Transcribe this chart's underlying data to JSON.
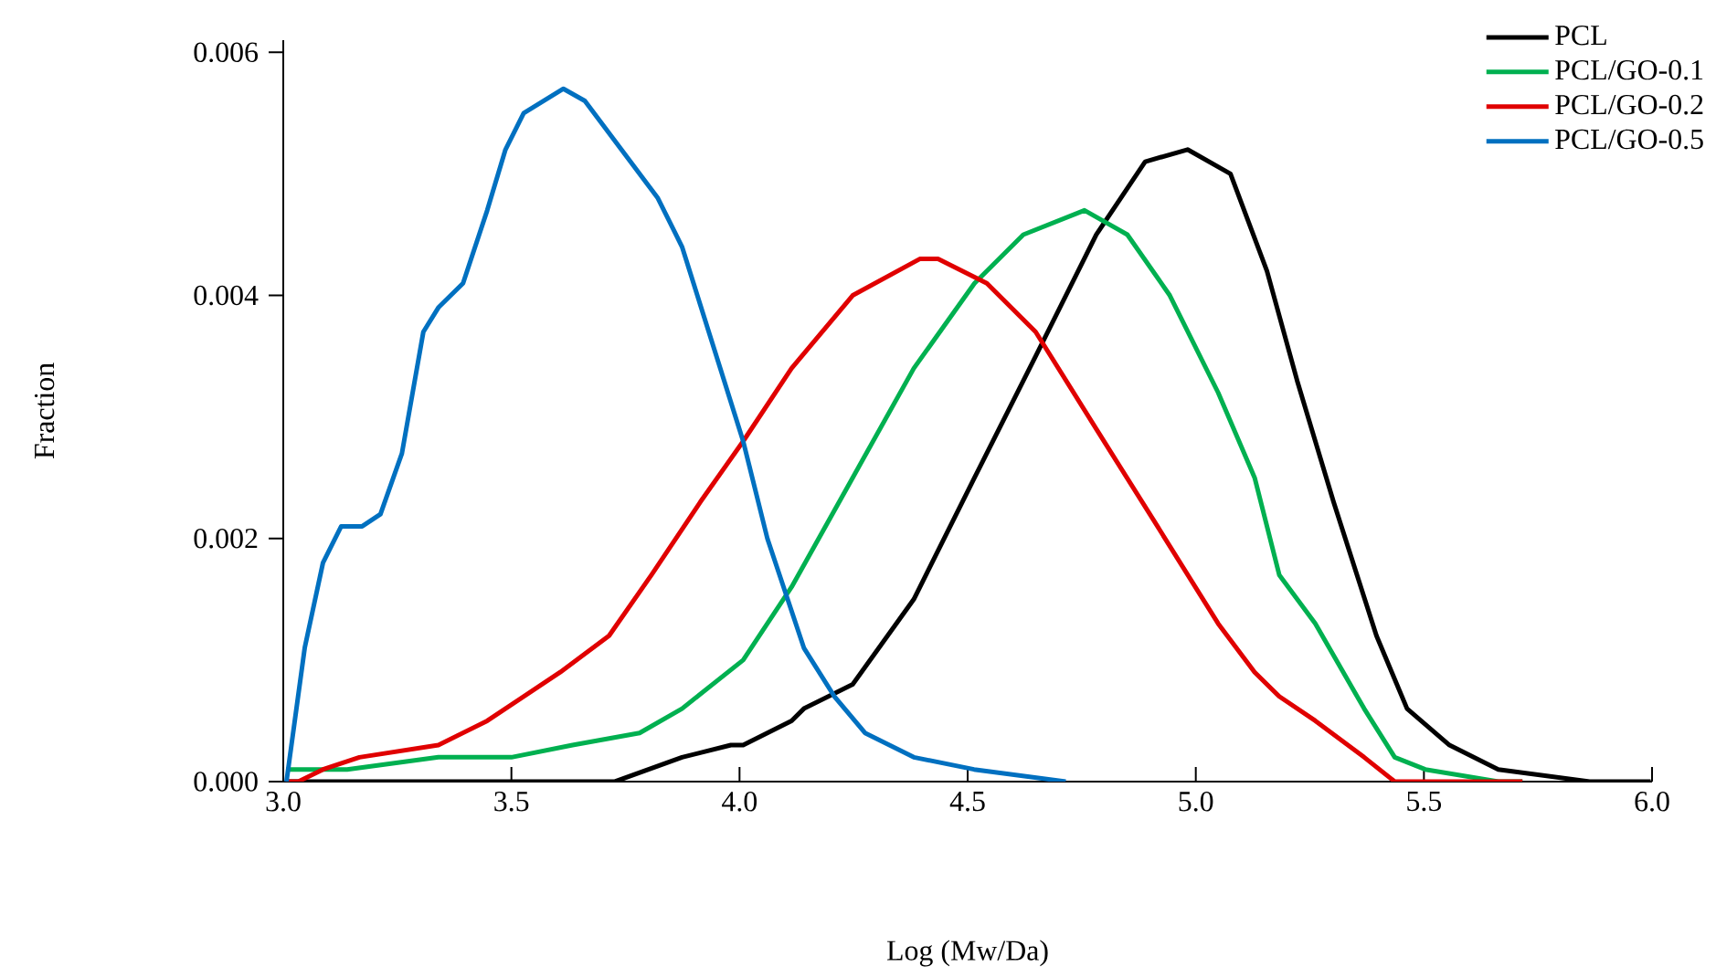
{
  "chart_data": {
    "type": "line",
    "xlabel": "Log (Mw/Da)",
    "ylabel": "Fraction",
    "xlim": [
      3.0,
      6.0
    ],
    "ylim": [
      0,
      0.0061
    ],
    "xticks": [
      {
        "value": 3.0,
        "label": "3.0"
      },
      {
        "value": 3.5,
        "label": "3.5"
      },
      {
        "value": 4.0,
        "label": "4.0"
      },
      {
        "value": 4.5,
        "label": "4.5"
      },
      {
        "value": 5.0,
        "label": "5.0"
      },
      {
        "value": 5.5,
        "label": "5.5"
      },
      {
        "value": 6.0,
        "label": "6.0"
      }
    ],
    "yticks": [
      {
        "value": 0,
        "label": "0.000"
      },
      {
        "value": 0.002,
        "label": "0.002"
      },
      {
        "value": 0.004,
        "label": "0.004"
      },
      {
        "value": 0.006,
        "label": "0.006"
      }
    ],
    "grid": false,
    "legend": "top right",
    "marker": "none",
    "line_style": "solid",
    "series": [
      {
        "name": "PCL",
        "color": "#000000",
        "x": [
          3.007,
          3.727,
          3.874,
          3.981,
          4.008,
          4.114,
          4.141,
          4.248,
          4.382,
          4.515,
          4.649,
          4.782,
          4.889,
          4.982,
          5.076,
          5.156,
          5.222,
          5.302,
          5.396,
          5.463,
          5.556,
          5.663,
          5.863,
          5.997
        ],
        "values": [
          0.0,
          0.0,
          0.0002,
          0.0003,
          0.0003,
          0.0005,
          0.0006,
          0.0008,
          0.0015,
          0.0025,
          0.0035,
          0.0045,
          0.0051,
          0.0052,
          0.005,
          0.0042,
          0.0033,
          0.0023,
          0.0012,
          0.0006,
          0.0003,
          0.0001,
          0.0,
          0.0
        ]
      },
      {
        "name": "PCL/GO-0.1",
        "color": "#00b050",
        "x": [
          3.007,
          3.14,
          3.34,
          3.5,
          3.634,
          3.781,
          3.874,
          4.008,
          4.114,
          4.248,
          4.382,
          4.515,
          4.622,
          4.756,
          4.85,
          4.943,
          5.049,
          5.129,
          5.183,
          5.262,
          5.369,
          5.436,
          5.503,
          5.663,
          5.716
        ],
        "values": [
          0.0001,
          0.0001,
          0.0002,
          0.0002,
          0.0003,
          0.0004,
          0.0006,
          0.001,
          0.0016,
          0.0025,
          0.0034,
          0.0041,
          0.0045,
          0.0047,
          0.0045,
          0.004,
          0.0032,
          0.0025,
          0.0017,
          0.0013,
          0.0006,
          0.0002,
          0.0001,
          0.0,
          0.0
        ]
      },
      {
        "name": "PCL/GO-0.2",
        "color": "#e00000",
        "x": [
          3.007,
          3.033,
          3.087,
          3.167,
          3.34,
          3.447,
          3.607,
          3.714,
          3.807,
          3.914,
          4.008,
          4.114,
          4.248,
          4.395,
          4.435,
          4.542,
          4.649,
          4.782,
          4.916,
          5.049,
          5.129,
          5.183,
          5.262,
          5.369,
          5.436,
          5.529,
          5.716
        ],
        "values": [
          0.0,
          0.0,
          0.0001,
          0.0002,
          0.0003,
          0.0005,
          0.0009,
          0.0012,
          0.0017,
          0.0023,
          0.0028,
          0.0034,
          0.004,
          0.0043,
          0.0043,
          0.0041,
          0.0037,
          0.0029,
          0.0021,
          0.0013,
          0.0009,
          0.0007,
          0.0005,
          0.0002,
          0.0,
          0.0,
          0.0
        ]
      },
      {
        "name": "PCL/GO-0.5",
        "color": "#0070c0",
        "x": [
          3.007,
          3.047,
          3.087,
          3.127,
          3.173,
          3.213,
          3.26,
          3.307,
          3.34,
          3.394,
          3.447,
          3.487,
          3.527,
          3.614,
          3.661,
          3.741,
          3.821,
          3.874,
          3.941,
          4.008,
          4.061,
          4.141,
          4.208,
          4.275,
          4.382,
          4.514,
          4.715
        ],
        "values": [
          0.0,
          0.0011,
          0.0018,
          0.0021,
          0.0021,
          0.0022,
          0.0027,
          0.0037,
          0.0039,
          0.0041,
          0.0047,
          0.0052,
          0.0055,
          0.0057,
          0.0056,
          0.0052,
          0.0048,
          0.0044,
          0.0036,
          0.0028,
          0.002,
          0.0011,
          0.0007,
          0.0004,
          0.0002,
          0.0001,
          0.0
        ]
      }
    ]
  }
}
